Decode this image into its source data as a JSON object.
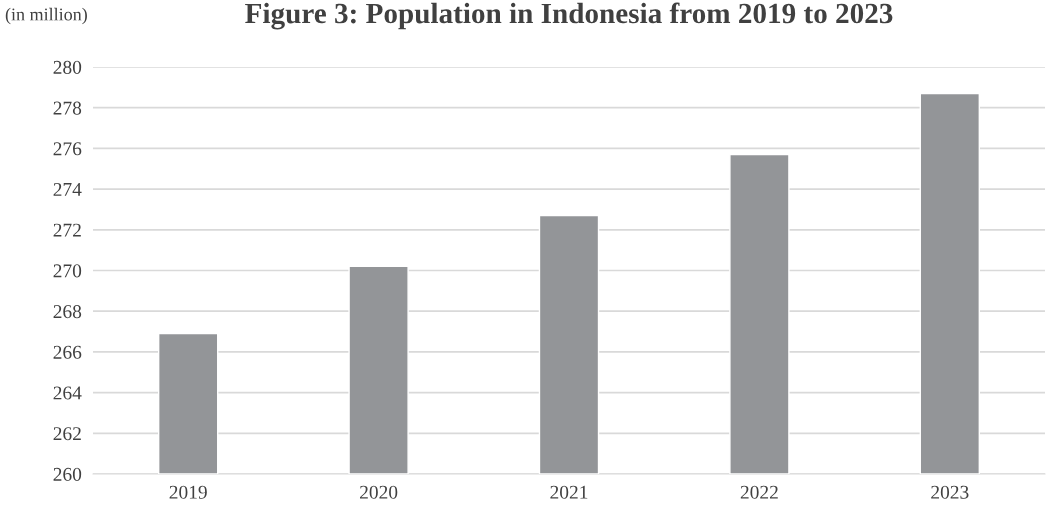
{
  "chart_data": {
    "type": "bar",
    "title": "Figure 3: Population in Indonesia from 2019 to 2023",
    "ylabel": "(in million)",
    "categories": [
      "2019",
      "2020",
      "2021",
      "2022",
      "2023"
    ],
    "values": [
      266.9,
      270.2,
      272.7,
      275.7,
      278.7
    ],
    "color": "#939598",
    "ylim": [
      260,
      280
    ],
    "yticks": [
      260,
      262,
      264,
      266,
      268,
      270,
      272,
      274,
      276,
      278,
      280
    ],
    "grid": "y"
  }
}
